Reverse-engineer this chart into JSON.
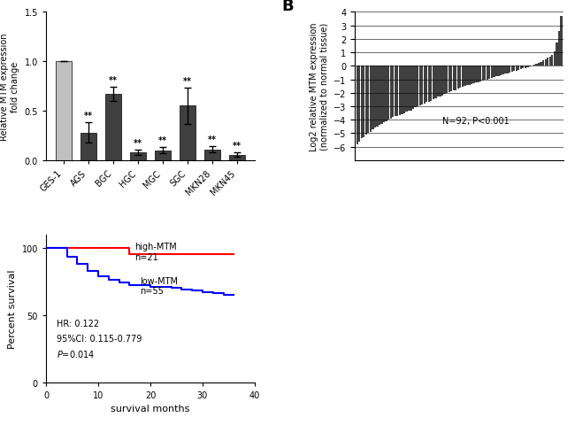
{
  "panel_A": {
    "categories": [
      "GES-1",
      "AGS",
      "BGC",
      "HGC",
      "MGC",
      "SGC",
      "MKN28",
      "MKN45"
    ],
    "values": [
      1.0,
      0.28,
      0.67,
      0.08,
      0.1,
      0.55,
      0.11,
      0.055
    ],
    "errors": [
      0.0,
      0.1,
      0.07,
      0.025,
      0.03,
      0.18,
      0.03,
      0.02
    ],
    "colors": [
      "#c0c0c0",
      "#404040",
      "#404040",
      "#404040",
      "#404040",
      "#404040",
      "#404040",
      "#404040"
    ],
    "ylabel": "Relative MTM expression\nfold change",
    "ylim": [
      0,
      1.5
    ],
    "yticks": [
      0.0,
      0.5,
      1.0,
      1.5
    ],
    "significance": [
      "",
      "**",
      "**",
      "**",
      "**",
      "**",
      "**",
      "**"
    ]
  },
  "panel_B": {
    "ylabel": "Log2 relative MTM expression\n(normalized to normal tissue)",
    "ylim": [
      -7,
      4
    ],
    "yticks": [
      -6,
      -5,
      -4,
      -3,
      -2,
      -1,
      0,
      1,
      2,
      3,
      4
    ],
    "annotation": "N=92, P<0.001",
    "n_samples": 92,
    "bar_color": "#404040",
    "waterfall_values": [
      -5.8,
      -5.6,
      -5.4,
      -5.3,
      -5.1,
      -5.0,
      -4.9,
      -4.7,
      -4.6,
      -4.5,
      -4.4,
      -4.3,
      -4.2,
      -4.1,
      -4.0,
      -3.9,
      -3.8,
      -3.75,
      -3.7,
      -3.65,
      -3.6,
      -3.5,
      -3.4,
      -3.35,
      -3.3,
      -3.2,
      -3.1,
      -3.0,
      -2.95,
      -2.9,
      -2.8,
      -2.7,
      -2.65,
      -2.6,
      -2.5,
      -2.4,
      -2.3,
      -2.25,
      -2.2,
      -2.1,
      -2.0,
      -1.95,
      -1.9,
      -1.85,
      -1.8,
      -1.7,
      -1.6,
      -1.55,
      -1.5,
      -1.45,
      -1.4,
      -1.35,
      -1.3,
      -1.25,
      -1.2,
      -1.15,
      -1.1,
      -1.05,
      -1.0,
      -0.95,
      -0.9,
      -0.85,
      -0.8,
      -0.75,
      -0.7,
      -0.65,
      -0.6,
      -0.55,
      -0.5,
      -0.45,
      -0.4,
      -0.35,
      -0.3,
      -0.25,
      -0.2,
      -0.15,
      -0.1,
      -0.05,
      0.05,
      0.1,
      0.15,
      0.2,
      0.3,
      0.4,
      0.5,
      0.6,
      0.7,
      0.8,
      1.1,
      1.7,
      2.6,
      3.7
    ]
  },
  "panel_C": {
    "high_times": [
      0,
      16,
      16,
      36
    ],
    "high_surv": [
      100,
      100,
      95,
      95
    ],
    "low_times": [
      0,
      4,
      6,
      8,
      10,
      12,
      14,
      16,
      18,
      20,
      22,
      24,
      26,
      28,
      30,
      32,
      34,
      36
    ],
    "low_surv": [
      100,
      93,
      88,
      83,
      79,
      76,
      74,
      72,
      72,
      71,
      71,
      70,
      69,
      68,
      67,
      66,
      65,
      65
    ],
    "high_color": "#ff0000",
    "low_color": "#0000ff",
    "xlabel": "survival months",
    "ylabel": "Percent survival",
    "xlim": [
      0,
      40
    ],
    "ylim": [
      0,
      110
    ],
    "yticks": [
      0,
      50,
      100
    ],
    "xticks": [
      0,
      10,
      20,
      30,
      40
    ],
    "hr_line1": "HR: 0.122",
    "hr_line2": "95%CI: 0.115-0.779",
    "hr_line3": "P=0.014",
    "high_label": "high-MTM\nn=21",
    "low_label": "low-MTM\nn=55"
  }
}
